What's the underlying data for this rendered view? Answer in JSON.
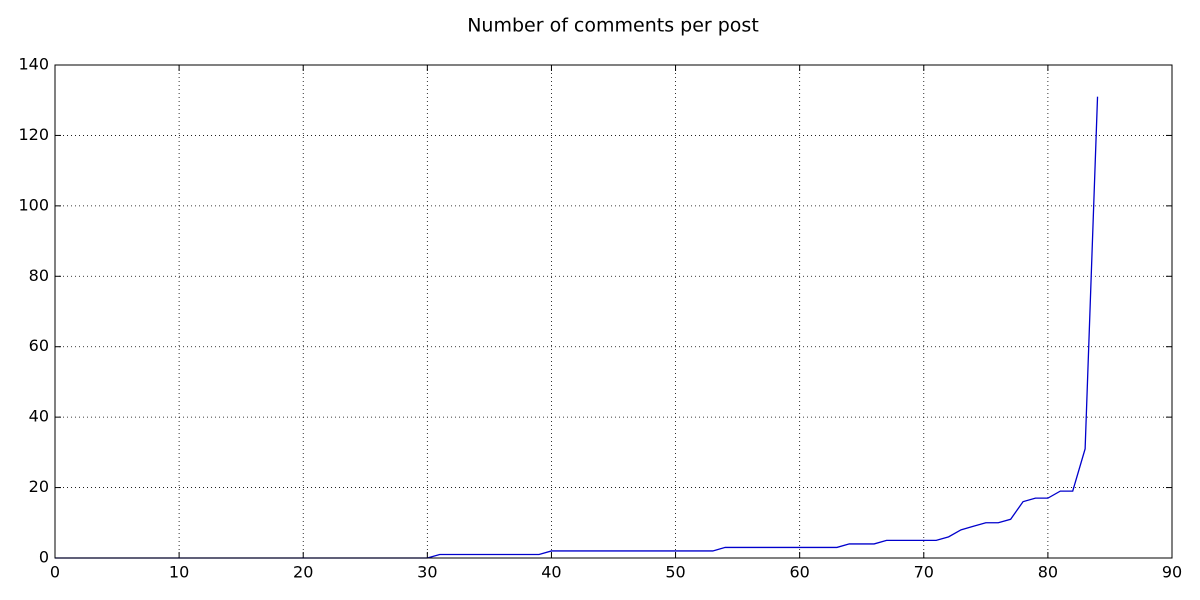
{
  "chart_data": {
    "type": "line",
    "title": "Number of comments per post",
    "x": [
      0,
      1,
      2,
      3,
      4,
      5,
      6,
      7,
      8,
      9,
      10,
      11,
      12,
      13,
      14,
      15,
      16,
      17,
      18,
      19,
      20,
      21,
      22,
      23,
      24,
      25,
      26,
      27,
      28,
      29,
      30,
      31,
      32,
      33,
      34,
      35,
      36,
      37,
      38,
      39,
      40,
      41,
      42,
      43,
      44,
      45,
      46,
      47,
      48,
      49,
      50,
      51,
      52,
      53,
      54,
      55,
      56,
      57,
      58,
      59,
      60,
      61,
      62,
      63,
      64,
      65,
      66,
      67,
      68,
      69,
      70,
      71,
      72,
      73,
      74,
      75,
      76,
      77,
      78,
      79,
      80,
      81,
      82,
      83,
      84
    ],
    "values": [
      0,
      0,
      0,
      0,
      0,
      0,
      0,
      0,
      0,
      0,
      0,
      0,
      0,
      0,
      0,
      0,
      0,
      0,
      0,
      0,
      0,
      0,
      0,
      0,
      0,
      0,
      0,
      0,
      0,
      0,
      0,
      1,
      1,
      1,
      1,
      1,
      1,
      1,
      1,
      1,
      2,
      2,
      2,
      2,
      2,
      2,
      2,
      2,
      2,
      2,
      2,
      2,
      2,
      2,
      3,
      3,
      3,
      3,
      3,
      3,
      3,
      3,
      3,
      3,
      4,
      4,
      4,
      5,
      5,
      5,
      5,
      5,
      6,
      8,
      9,
      10,
      10,
      11,
      16,
      17,
      17,
      19,
      19,
      31,
      131
    ],
    "color": "#0000cc",
    "xlim": [
      0,
      90
    ],
    "xticks": [
      0,
      10,
      20,
      30,
      40,
      50,
      60,
      70,
      80,
      90
    ],
    "ylim": [
      0,
      140
    ],
    "yticks": [
      0,
      20,
      40,
      60,
      80,
      100,
      120,
      140
    ],
    "grid": true
  }
}
